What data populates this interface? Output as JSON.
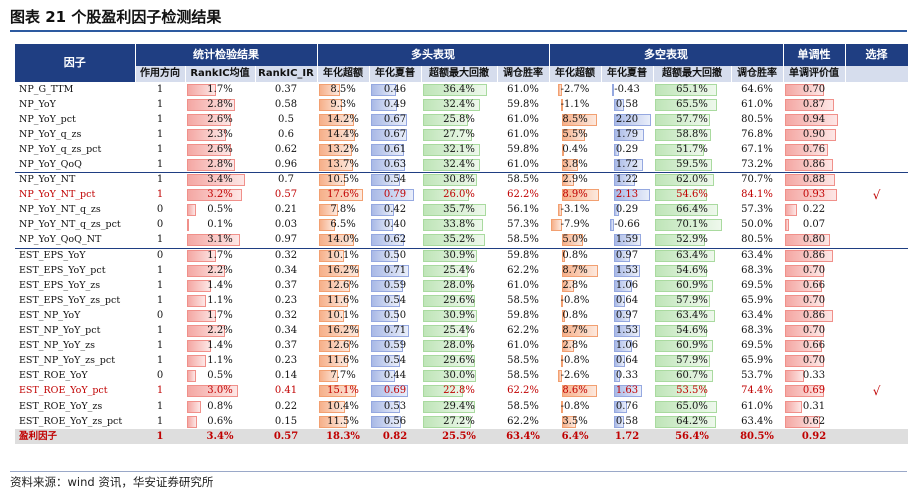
{
  "title": "图表 21 个股盈利因子检测结果",
  "source": "资料来源：wind 资讯，华安证券研究所",
  "colors": {
    "header": "#1f3e82",
    "subheader": "#d6dded",
    "highlight": "#c00000"
  },
  "headers": {
    "group": [
      "因子",
      "统计检验结果",
      "多头表现",
      "多空表现",
      "单调性",
      "选择"
    ],
    "columns": [
      "作用方向",
      "RankIC均值",
      "RankIC_IR",
      "年化超额",
      "年化夏普",
      "超额最大回撤",
      "调仓胜率",
      "年化超额",
      "年化夏普",
      "超额最大回撤",
      "调仓胜率",
      "单调评价值"
    ]
  },
  "rows": [
    {
      "name": "NP_G_TTM",
      "dir": "1",
      "ic": "1.7%",
      "ir": "0.37",
      "l_ret": "8.5%",
      "l_sh": "0.46",
      "l_dd": "36.4%",
      "l_win": "61.0%",
      "s_ret": "-2.7%",
      "s_sh": "-0.43",
      "s_dd": "65.1%",
      "s_win": "64.6%",
      "mono": "0.70",
      "sel": "",
      "grp": false,
      "red": false
    },
    {
      "name": "NP_YoY",
      "dir": "1",
      "ic": "2.8%",
      "ir": "0.58",
      "l_ret": "9.3%",
      "l_sh": "0.49",
      "l_dd": "32.4%",
      "l_win": "59.8%",
      "s_ret": "-1.1%",
      "s_sh": "0.58",
      "s_dd": "65.5%",
      "s_win": "61.0%",
      "mono": "0.87",
      "sel": "",
      "grp": false,
      "red": false
    },
    {
      "name": "NP_YoY_pct",
      "dir": "1",
      "ic": "2.6%",
      "ir": "0.5",
      "l_ret": "14.2%",
      "l_sh": "0.67",
      "l_dd": "25.8%",
      "l_win": "61.0%",
      "s_ret": "8.5%",
      "s_sh": "2.20",
      "s_dd": "57.7%",
      "s_win": "80.5%",
      "mono": "0.94",
      "sel": "",
      "grp": false,
      "red": false
    },
    {
      "name": "NP_YoY_q_zs",
      "dir": "1",
      "ic": "2.3%",
      "ir": "0.6",
      "l_ret": "14.4%",
      "l_sh": "0.67",
      "l_dd": "27.7%",
      "l_win": "61.0%",
      "s_ret": "5.5%",
      "s_sh": "1.79",
      "s_dd": "58.8%",
      "s_win": "76.8%",
      "mono": "0.90",
      "sel": "",
      "grp": false,
      "red": false
    },
    {
      "name": "NP_YoY_q_zs_pct",
      "dir": "1",
      "ic": "2.6%",
      "ir": "0.62",
      "l_ret": "13.2%",
      "l_sh": "0.61",
      "l_dd": "32.1%",
      "l_win": "59.8%",
      "s_ret": "0.4%",
      "s_sh": "0.29",
      "s_dd": "51.7%",
      "s_win": "67.1%",
      "mono": "0.76",
      "sel": "",
      "grp": false,
      "red": false
    },
    {
      "name": "NP_YoY_QoQ",
      "dir": "1",
      "ic": "2.8%",
      "ir": "0.96",
      "l_ret": "13.7%",
      "l_sh": "0.63",
      "l_dd": "32.4%",
      "l_win": "61.0%",
      "s_ret": "3.8%",
      "s_sh": "1.72",
      "s_dd": "59.5%",
      "s_win": "73.2%",
      "mono": "0.86",
      "sel": "",
      "grp": false,
      "red": false
    },
    {
      "name": "NP_YoY_NT",
      "dir": "1",
      "ic": "3.4%",
      "ir": "0.7",
      "l_ret": "10.5%",
      "l_sh": "0.54",
      "l_dd": "30.8%",
      "l_win": "58.5%",
      "s_ret": "2.9%",
      "s_sh": "1.22",
      "s_dd": "62.0%",
      "s_win": "70.7%",
      "mono": "0.88",
      "sel": "",
      "grp": true,
      "red": false
    },
    {
      "name": "NP_YoY_NT_pct",
      "dir": "1",
      "ic": "3.2%",
      "ir": "0.57",
      "l_ret": "17.6%",
      "l_sh": "0.79",
      "l_dd": "26.0%",
      "l_win": "62.2%",
      "s_ret": "8.9%",
      "s_sh": "2.13",
      "s_dd": "54.6%",
      "s_win": "84.1%",
      "mono": "0.93",
      "sel": "√",
      "grp": false,
      "red": true
    },
    {
      "name": "NP_YoY_NT_q_zs",
      "dir": "0",
      "ic": "0.5%",
      "ir": "0.21",
      "l_ret": "7.8%",
      "l_sh": "0.42",
      "l_dd": "35.7%",
      "l_win": "56.1%",
      "s_ret": "-3.1%",
      "s_sh": "0.29",
      "s_dd": "66.4%",
      "s_win": "57.3%",
      "mono": "0.22",
      "sel": "",
      "grp": false,
      "red": false
    },
    {
      "name": "NP_YoY_NT_q_zs_pct",
      "dir": "0",
      "ic": "0.1%",
      "ir": "0.03",
      "l_ret": "6.5%",
      "l_sh": "0.40",
      "l_dd": "33.8%",
      "l_win": "57.3%",
      "s_ret": "-7.9%",
      "s_sh": "-0.66",
      "s_dd": "70.1%",
      "s_win": "50.0%",
      "mono": "0.07",
      "sel": "",
      "grp": false,
      "red": false
    },
    {
      "name": "NP_YoY_QoQ_NT",
      "dir": "1",
      "ic": "3.1%",
      "ir": "0.97",
      "l_ret": "14.0%",
      "l_sh": "0.62",
      "l_dd": "35.2%",
      "l_win": "58.5%",
      "s_ret": "5.0%",
      "s_sh": "1.59",
      "s_dd": "52.9%",
      "s_win": "80.5%",
      "mono": "0.80",
      "sel": "",
      "grp": false,
      "red": false
    },
    {
      "name": "EST_EPS_YoY",
      "dir": "0",
      "ic": "1.7%",
      "ir": "0.32",
      "l_ret": "10.1%",
      "l_sh": "0.50",
      "l_dd": "30.9%",
      "l_win": "59.8%",
      "s_ret": "0.8%",
      "s_sh": "0.97",
      "s_dd": "63.4%",
      "s_win": "63.4%",
      "mono": "0.86",
      "sel": "",
      "grp": true,
      "red": false
    },
    {
      "name": "EST_EPS_YoY_pct",
      "dir": "1",
      "ic": "2.2%",
      "ir": "0.34",
      "l_ret": "16.2%",
      "l_sh": "0.71",
      "l_dd": "25.4%",
      "l_win": "62.2%",
      "s_ret": "8.7%",
      "s_sh": "1.53",
      "s_dd": "54.6%",
      "s_win": "68.3%",
      "mono": "0.70",
      "sel": "",
      "grp": false,
      "red": false
    },
    {
      "name": "EST_EPS_YoY_zs",
      "dir": "1",
      "ic": "1.4%",
      "ir": "0.37",
      "l_ret": "12.6%",
      "l_sh": "0.59",
      "l_dd": "28.0%",
      "l_win": "61.0%",
      "s_ret": "2.8%",
      "s_sh": "1.06",
      "s_dd": "60.9%",
      "s_win": "69.5%",
      "mono": "0.66",
      "sel": "",
      "grp": false,
      "red": false
    },
    {
      "name": "EST_EPS_YoY_zs_pct",
      "dir": "1",
      "ic": "1.1%",
      "ir": "0.23",
      "l_ret": "11.6%",
      "l_sh": "0.54",
      "l_dd": "29.6%",
      "l_win": "58.5%",
      "s_ret": "-0.8%",
      "s_sh": "0.64",
      "s_dd": "57.9%",
      "s_win": "65.9%",
      "mono": "0.70",
      "sel": "",
      "grp": false,
      "red": false
    },
    {
      "name": "EST_NP_YoY",
      "dir": "0",
      "ic": "1.7%",
      "ir": "0.32",
      "l_ret": "10.1%",
      "l_sh": "0.50",
      "l_dd": "30.9%",
      "l_win": "59.8%",
      "s_ret": "0.8%",
      "s_sh": "0.97",
      "s_dd": "63.4%",
      "s_win": "63.4%",
      "mono": "0.86",
      "sel": "",
      "grp": false,
      "red": false
    },
    {
      "name": "EST_NP_YoY_pct",
      "dir": "1",
      "ic": "2.2%",
      "ir": "0.34",
      "l_ret": "16.2%",
      "l_sh": "0.71",
      "l_dd": "25.4%",
      "l_win": "62.2%",
      "s_ret": "8.7%",
      "s_sh": "1.53",
      "s_dd": "54.6%",
      "s_win": "68.3%",
      "mono": "0.70",
      "sel": "",
      "grp": false,
      "red": false
    },
    {
      "name": "EST_NP_YoY_zs",
      "dir": "1",
      "ic": "1.4%",
      "ir": "0.37",
      "l_ret": "12.6%",
      "l_sh": "0.59",
      "l_dd": "28.0%",
      "l_win": "61.0%",
      "s_ret": "2.8%",
      "s_sh": "1.06",
      "s_dd": "60.9%",
      "s_win": "69.5%",
      "mono": "0.66",
      "sel": "",
      "grp": false,
      "red": false
    },
    {
      "name": "EST_NP_YoY_zs_pct",
      "dir": "1",
      "ic": "1.1%",
      "ir": "0.23",
      "l_ret": "11.6%",
      "l_sh": "0.54",
      "l_dd": "29.6%",
      "l_win": "58.5%",
      "s_ret": "-0.8%",
      "s_sh": "0.64",
      "s_dd": "57.9%",
      "s_win": "65.9%",
      "mono": "0.70",
      "sel": "",
      "grp": false,
      "red": false
    },
    {
      "name": "EST_ROE_YoY",
      "dir": "0",
      "ic": "0.5%",
      "ir": "0.14",
      "l_ret": "7.7%",
      "l_sh": "0.44",
      "l_dd": "30.0%",
      "l_win": "58.5%",
      "s_ret": "-2.6%",
      "s_sh": "0.33",
      "s_dd": "60.7%",
      "s_win": "53.7%",
      "mono": "0.33",
      "sel": "",
      "grp": false,
      "red": false
    },
    {
      "name": "EST_ROE_YoY_pct",
      "dir": "1",
      "ic": "3.0%",
      "ir": "0.41",
      "l_ret": "15.1%",
      "l_sh": "0.69",
      "l_dd": "22.8%",
      "l_win": "62.2%",
      "s_ret": "8.6%",
      "s_sh": "1.63",
      "s_dd": "53.5%",
      "s_win": "74.4%",
      "mono": "0.69",
      "sel": "√",
      "grp": false,
      "red": true
    },
    {
      "name": "EST_ROE_YoY_zs",
      "dir": "1",
      "ic": "0.8%",
      "ir": "0.22",
      "l_ret": "10.4%",
      "l_sh": "0.53",
      "l_dd": "29.4%",
      "l_win": "58.5%",
      "s_ret": "-0.8%",
      "s_sh": "0.76",
      "s_dd": "65.0%",
      "s_win": "61.0%",
      "mono": "0.31",
      "sel": "",
      "grp": false,
      "red": false
    },
    {
      "name": "EST_ROE_YoY_zs_pct",
      "dir": "1",
      "ic": "0.6%",
      "ir": "0.15",
      "l_ret": "11.5%",
      "l_sh": "0.56",
      "l_dd": "27.2%",
      "l_win": "62.2%",
      "s_ret": "3.5%",
      "s_sh": "0.58",
      "s_dd": "64.2%",
      "s_win": "63.4%",
      "mono": "0.62",
      "sel": "",
      "grp": false,
      "red": false
    }
  ],
  "total": {
    "name": "盈利因子",
    "dir": "1",
    "ic": "3.4%",
    "ir": "0.57",
    "l_ret": "18.3%",
    "l_sh": "0.82",
    "l_dd": "25.5%",
    "l_win": "63.4%",
    "s_ret": "6.4%",
    "s_sh": "1.72",
    "s_dd": "56.4%",
    "s_win": "80.5%",
    "mono": "0.92",
    "sel": ""
  }
}
